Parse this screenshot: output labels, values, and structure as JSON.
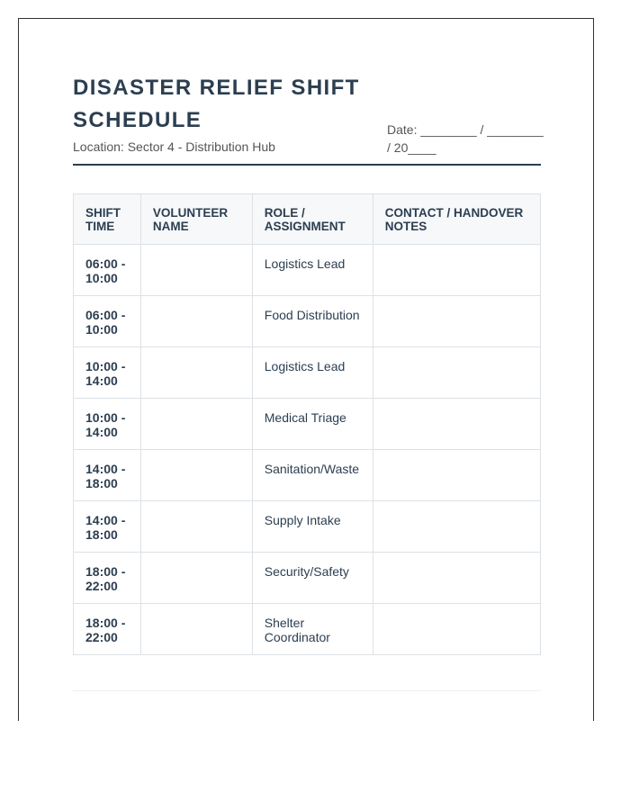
{
  "title": "DISASTER RELIEF SHIFT SCHEDULE",
  "location": "Location: Sector 4 - Distribution Hub",
  "date_line": "Date: ________ / ________ / 20____",
  "table": {
    "headers": [
      "SHIFT TIME",
      "VOLUNTEER NAME",
      "ROLE / ASSIGNMENT",
      "CONTACT / HANDOVER NOTES"
    ],
    "rows": [
      {
        "time": "06:00 - 10:00",
        "name": "",
        "role": "Logistics Lead",
        "notes": ""
      },
      {
        "time": "06:00 - 10:00",
        "name": "",
        "role": "Food Distribution",
        "notes": ""
      },
      {
        "time": "10:00 - 14:00",
        "name": "",
        "role": "Logistics Lead",
        "notes": ""
      },
      {
        "time": "10:00 - 14:00",
        "name": "",
        "role": "Medical Triage",
        "notes": ""
      },
      {
        "time": "14:00 - 18:00",
        "name": "",
        "role": "Sanitation/Waste",
        "notes": ""
      },
      {
        "time": "14:00 - 18:00",
        "name": "",
        "role": "Supply Intake",
        "notes": ""
      },
      {
        "time": "18:00 - 22:00",
        "name": "",
        "role": "Security/Safety",
        "notes": ""
      },
      {
        "time": "18:00 - 22:00",
        "name": "",
        "role": "Shelter Coordinator",
        "notes": ""
      }
    ]
  }
}
